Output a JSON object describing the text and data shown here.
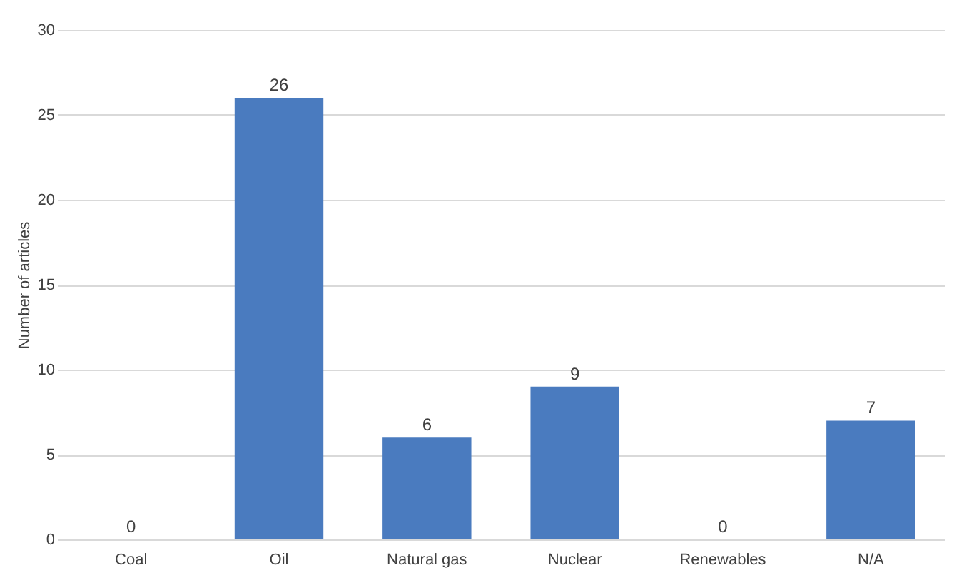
{
  "chart_data": {
    "type": "bar",
    "ylabel": "Number of articles",
    "categories": [
      "Coal",
      "Oil",
      "Natural gas",
      "Nuclear",
      "Renewables",
      "N/A"
    ],
    "values": [
      0,
      26,
      6,
      9,
      0,
      7
    ],
    "color": "#4a7bbf",
    "ylim": [
      0,
      30
    ],
    "yticks": [
      0,
      5,
      10,
      15,
      20,
      25,
      30
    ],
    "grid": "y",
    "data_labels": true
  }
}
